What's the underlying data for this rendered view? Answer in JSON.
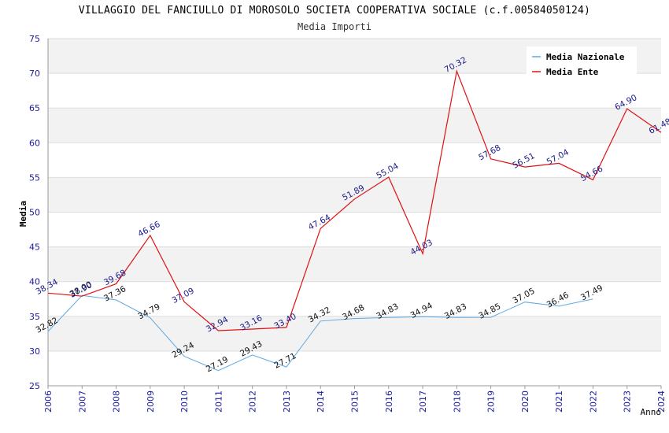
{
  "chart_data": {
    "type": "line",
    "title": "VILLAGGIO DEL FANCIULLO DI MOROSOLO SOCIETA COOPERATIVA SOCIALE (c.f.00584050124)",
    "subtitle": "Media Importi",
    "xlabel": "Anno",
    "ylabel": "Media",
    "ylim": [
      25,
      75
    ],
    "yticks": [
      25,
      30,
      35,
      40,
      45,
      50,
      55,
      60,
      65,
      70,
      75
    ],
    "x": [
      "2006",
      "2007",
      "2008",
      "2009",
      "2010",
      "2011",
      "2012",
      "2013",
      "2014",
      "2015",
      "2016",
      "2017",
      "2018",
      "2019",
      "2020",
      "2021",
      "2022",
      "2023",
      "2024"
    ],
    "legend_position": "top-right",
    "series": [
      {
        "name": "Media Nazionale",
        "color": "#5fa8e0",
        "values": [
          32.82,
          38.0,
          37.36,
          34.79,
          29.24,
          27.19,
          29.43,
          27.71,
          34.32,
          34.68,
          34.83,
          34.94,
          34.83,
          34.85,
          37.05,
          36.46,
          37.49,
          null,
          null
        ],
        "labels": [
          "32.82",
          "38.00",
          "37.36",
          "34.79",
          "29.24",
          "27.19",
          "29.43",
          "27.71",
          "34.32",
          "34.68",
          "34.83",
          "34.94",
          "34.83",
          "34.85",
          "37.05",
          "36.46",
          "37.49",
          null,
          null
        ]
      },
      {
        "name": "Media Ente",
        "color": "#e01010",
        "values": [
          38.34,
          37.9,
          39.68,
          46.66,
          37.09,
          32.94,
          33.16,
          33.4,
          47.64,
          51.89,
          55.04,
          44.03,
          70.32,
          57.68,
          56.51,
          57.04,
          54.66,
          64.9,
          61.48
        ],
        "labels": [
          "38.34",
          "37.90",
          "39.68",
          "46.66",
          "37.09",
          "32.94",
          "33.16",
          "33.40",
          "47.64",
          "51.89",
          "55.04",
          "44.03",
          "70.32",
          "57.68",
          "56.51",
          "57.04",
          "54.66",
          "64.90",
          "61.48"
        ]
      }
    ]
  }
}
